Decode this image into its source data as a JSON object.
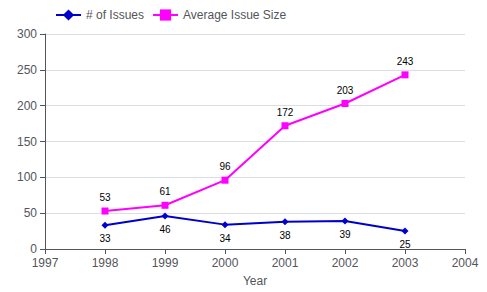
{
  "chart_data": {
    "type": "line",
    "xlabel": "Year",
    "x": [
      1998,
      1999,
      2000,
      2001,
      2002,
      2003
    ],
    "series": [
      {
        "name": "# of Issues",
        "color": "#0000CD",
        "values": [
          33,
          46,
          34,
          38,
          39,
          25
        ],
        "marker": "diamond"
      },
      {
        "name": "Average Issue Size",
        "color": "#FF00FF",
        "values": [
          53,
          61,
          96,
          172,
          203,
          243
        ],
        "marker": "square"
      }
    ],
    "xlim": [
      1997,
      2004
    ],
    "xticks": [
      1997,
      1998,
      1999,
      2000,
      2001,
      2002,
      2003,
      2004
    ],
    "ylim": [
      0,
      300
    ],
    "yticks": [
      0,
      50,
      100,
      150,
      200,
      250,
      300
    ],
    "grid": true,
    "legend": "upper left",
    "data_labels": true
  }
}
